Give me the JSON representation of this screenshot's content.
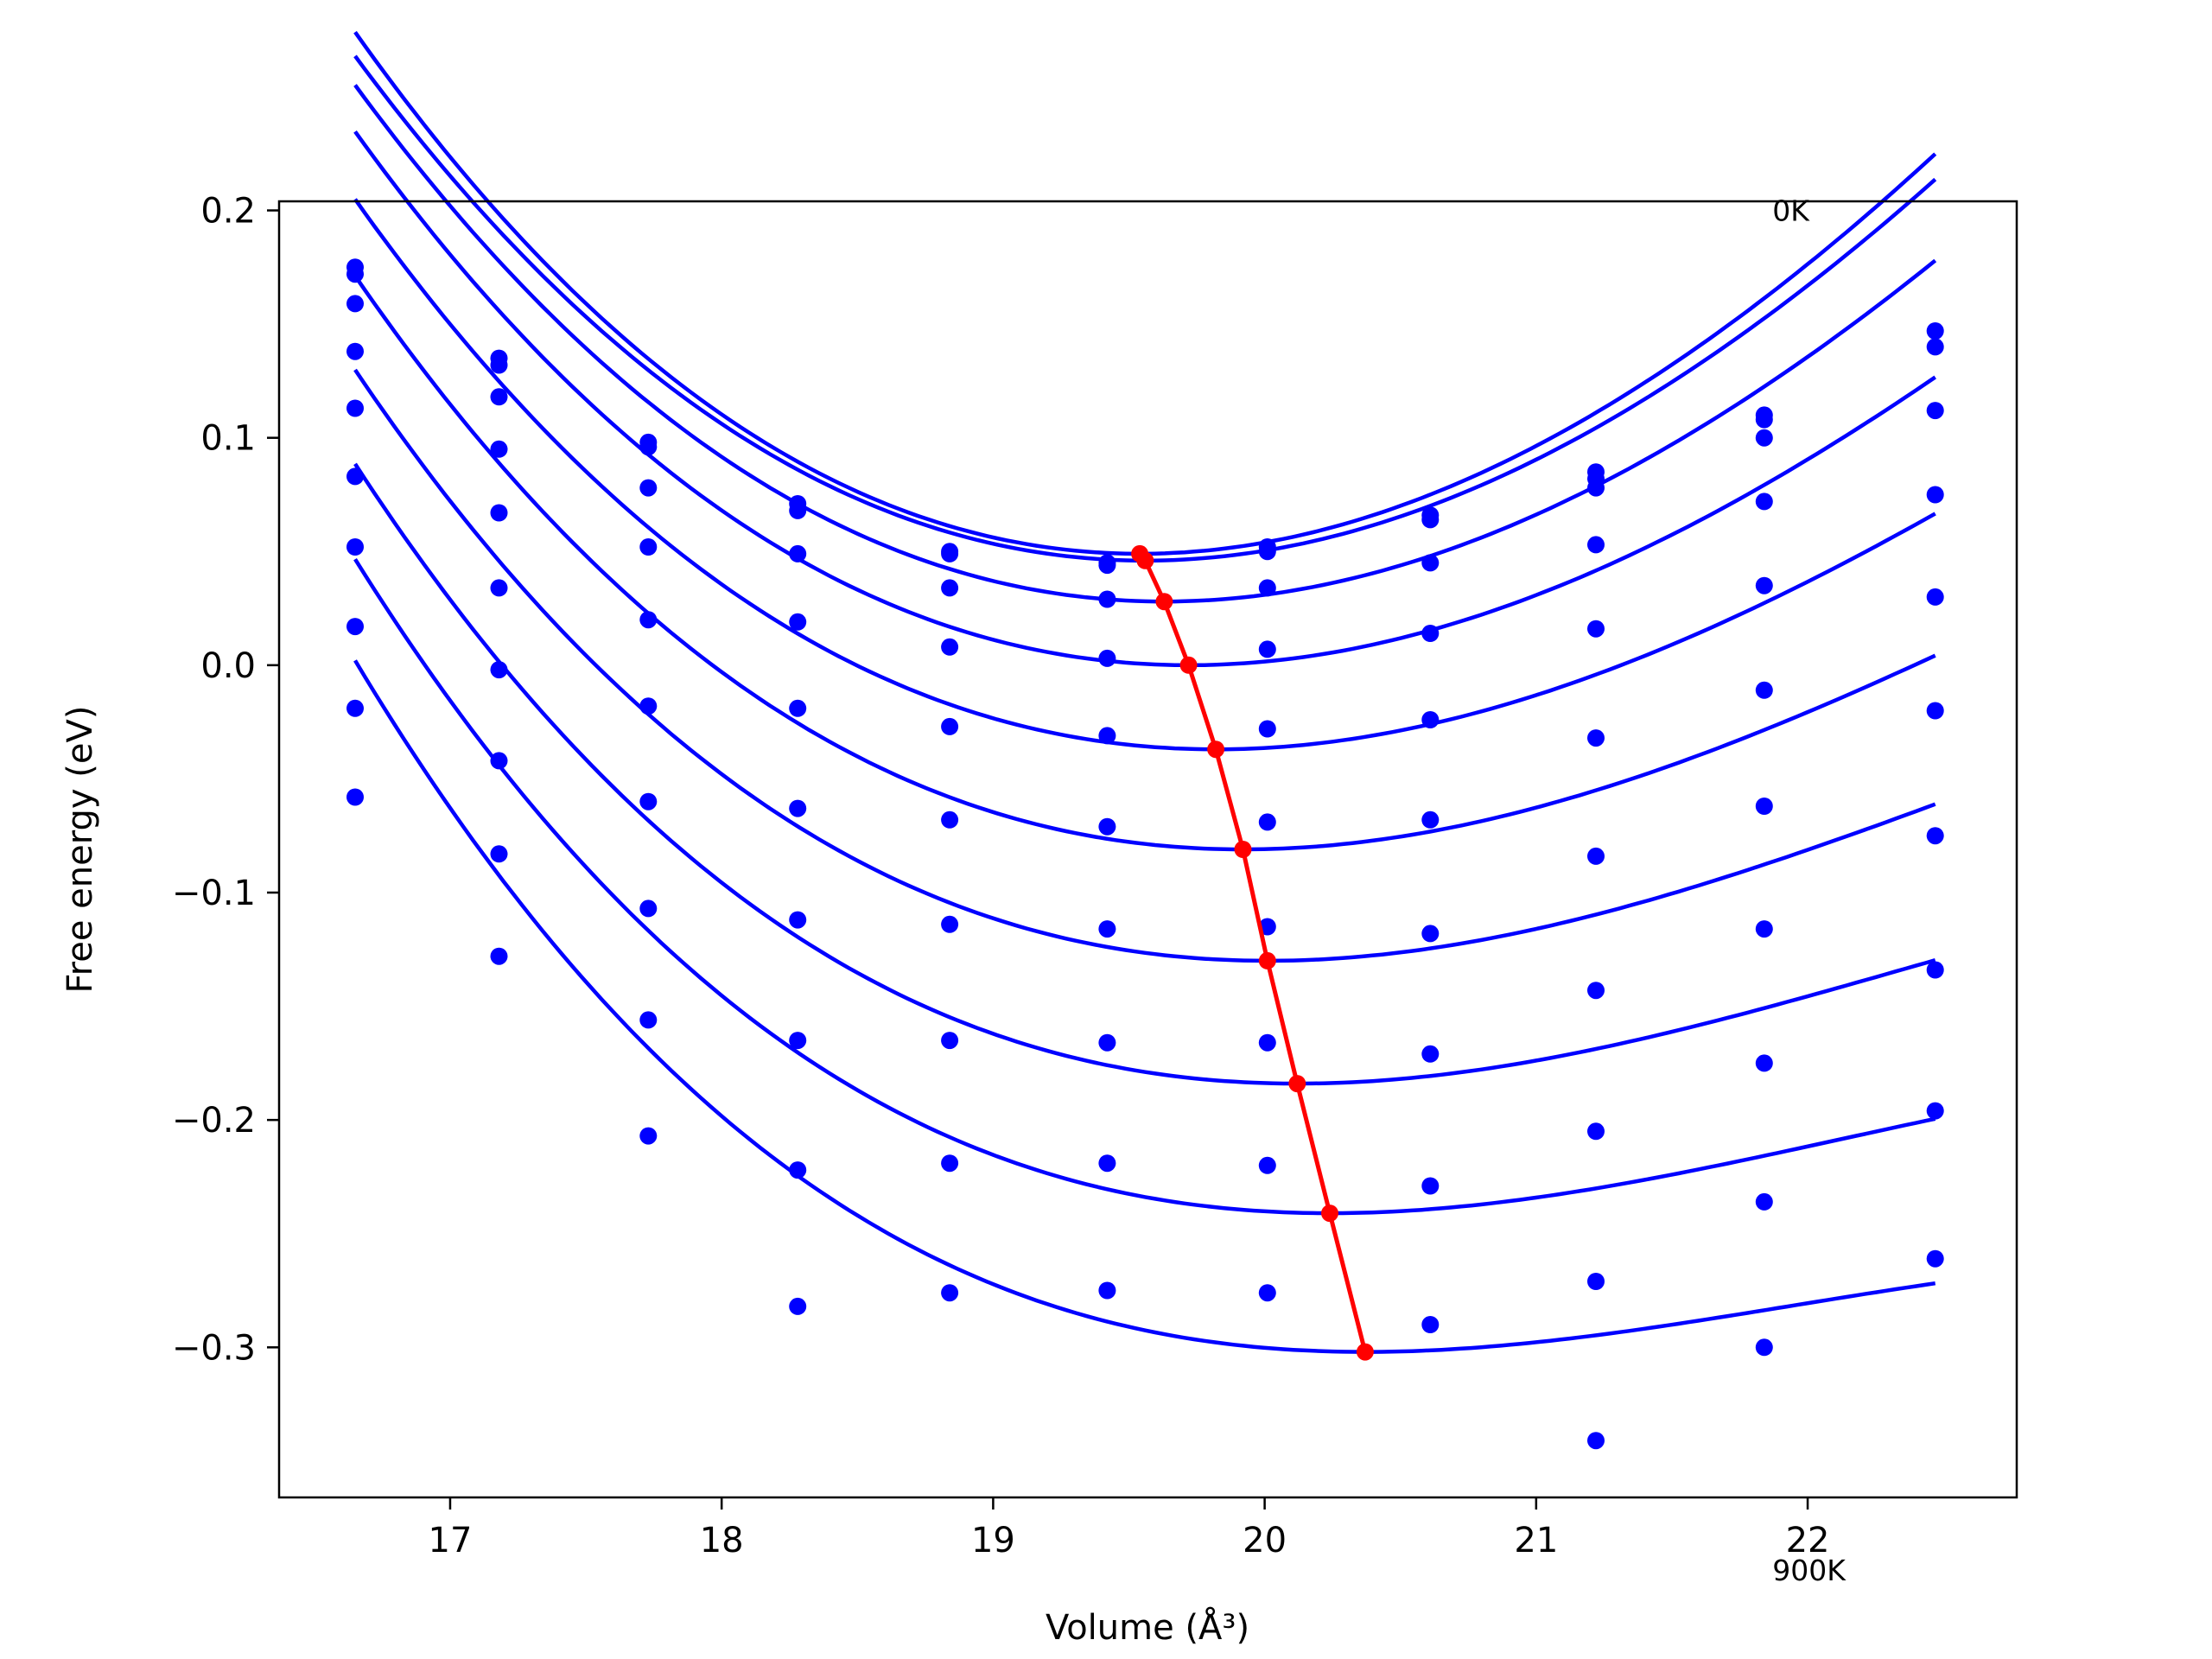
{
  "chart_data": {
    "type": "line",
    "xlabel": "Volume (Å³)",
    "ylabel": "Free energy (eV)",
    "xlim": [
      16.37,
      22.77
    ],
    "ylim": [
      -0.366,
      0.204
    ],
    "xticks": [
      17,
      18,
      19,
      20,
      21,
      22
    ],
    "yticks": [
      0.2,
      0.1,
      0.0,
      -0.1,
      -0.2,
      -0.3
    ],
    "ytick_labels": [
      "0.2",
      "0.1",
      "0.0",
      "−0.1",
      "−0.2",
      "−0.3"
    ],
    "grid": false,
    "annotations": [
      {
        "text": "0K",
        "x": 21.87,
        "y": 0.2
      },
      {
        "text": "900K",
        "x": 21.87,
        "y": -0.398
      }
    ],
    "colors": {
      "curves": "#0000ff",
      "points": "#0000ff",
      "minima": "#ff0000"
    },
    "volumes": [
      16.65,
      17.18,
      17.73,
      18.28,
      18.84,
      19.42,
      20.01,
      20.61,
      21.22,
      21.84,
      22.47
    ],
    "curve_x_range": [
      16.65,
      22.47
    ],
    "series": [
      {
        "points": [
          0.175,
          0.135,
          0.098,
          0.071,
          0.05,
          0.045,
          0.052,
          0.066,
          0.085,
          0.11,
          0.147
        ],
        "fit": {
          "e0": 0.049,
          "v0": 19.54,
          "a": 0.024,
          "c3": -0.0012
        }
      },
      {
        "points": [
          0.172,
          0.132,
          0.096,
          0.068,
          0.049,
          0.044,
          0.05,
          0.064,
          0.082,
          0.108,
          0.14
        ],
        "fit": {
          "e0": 0.046,
          "v0": 19.56,
          "a": 0.023,
          "c3": -0.0011
        }
      },
      {
        "points": [
          0.159,
          0.118,
          0.078,
          0.049,
          0.034,
          0.029,
          0.034,
          0.045,
          0.078,
          0.1,
          0.112
        ],
        "fit": {
          "e0": 0.028,
          "v0": 19.63,
          "a": 0.022,
          "c3": -0.0012
        }
      },
      {
        "points": [
          0.138,
          0.095,
          0.052,
          0.019,
          0.008,
          0.003,
          0.007,
          0.014,
          0.053,
          0.072,
          0.075
        ],
        "fit": {
          "e0": 0.0,
          "v0": 19.72,
          "a": 0.0206,
          "c3": -0.0014
        }
      },
      {
        "points": [
          0.113,
          0.067,
          0.02,
          -0.019,
          -0.027,
          -0.031,
          -0.028,
          -0.024,
          0.016,
          0.035,
          0.03
        ],
        "fit": {
          "e0": -0.037,
          "v0": 19.82,
          "a": 0.019,
          "c3": -0.0016
        }
      },
      {
        "points": [
          0.083,
          0.034,
          -0.018,
          -0.063,
          -0.068,
          -0.071,
          -0.069,
          -0.068,
          -0.032,
          -0.011,
          -0.02
        ],
        "fit": {
          "e0": -0.081,
          "v0": 19.92,
          "a": 0.0177,
          "c3": -0.0018
        }
      },
      {
        "points": [
          0.052,
          -0.002,
          -0.06,
          -0.112,
          -0.114,
          -0.116,
          -0.115,
          -0.118,
          -0.084,
          -0.062,
          -0.075
        ],
        "fit": {
          "e0": -0.13,
          "v0": 20.01,
          "a": 0.0163,
          "c3": -0.002
        }
      },
      {
        "points": [
          0.017,
          -0.042,
          -0.107,
          -0.165,
          -0.165,
          -0.166,
          -0.166,
          -0.171,
          -0.143,
          -0.116,
          -0.134
        ],
        "fit": {
          "e0": -0.184,
          "v0": 20.12,
          "a": 0.015,
          "c3": -0.0022
        }
      },
      {
        "points": [
          -0.019,
          -0.083,
          -0.156,
          -0.222,
          -0.219,
          -0.219,
          -0.22,
          -0.229,
          -0.205,
          -0.175,
          -0.196
        ],
        "fit": {
          "e0": -0.241,
          "v0": 20.24,
          "a": 0.0137,
          "c3": -0.0024
        }
      },
      {
        "points": [
          -0.058,
          -0.128,
          -0.207,
          -0.282,
          -0.276,
          -0.275,
          -0.276,
          -0.29,
          -0.271,
          -0.236,
          -0.261
        ],
        "fit": {
          "e0": -0.302,
          "v0": 20.37,
          "a": 0.0123,
          "c3": -0.0026
        }
      },
      {
        "points": [
          null,
          null,
          null,
          null,
          null,
          null,
          null,
          null,
          -0.341,
          -0.3,
          null
        ],
        "fit": null
      }
    ],
    "minima_line": {
      "x": [
        19.54,
        19.56,
        19.63,
        19.72,
        19.82,
        19.92,
        20.01,
        20.12,
        20.24,
        20.37
      ],
      "y": [
        0.049,
        0.046,
        0.028,
        0.0,
        -0.037,
        -0.081,
        -0.13,
        -0.184,
        -0.241,
        -0.302
      ]
    }
  }
}
